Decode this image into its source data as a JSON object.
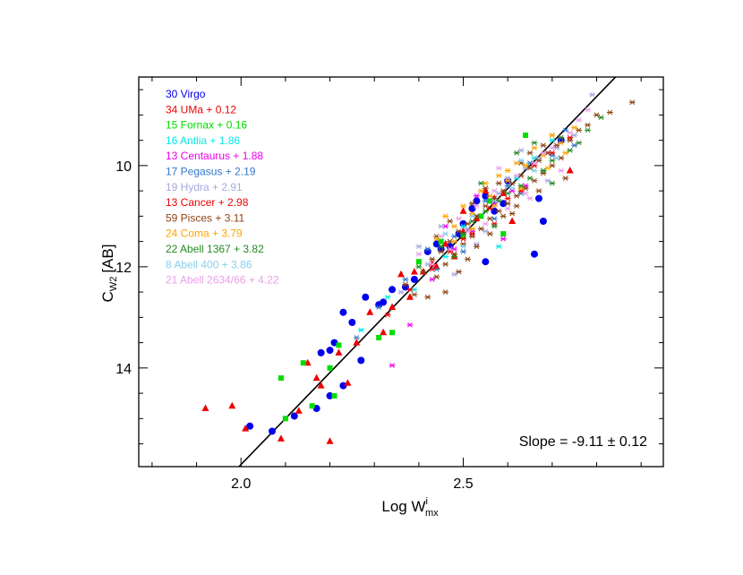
{
  "chart_data": {
    "type": "scatter",
    "xlabel_base": "Log W",
    "xlabel_sup": "i",
    "xlabel_sub": "mx",
    "ylabel_base": "C",
    "ylabel_sub": "W2",
    "ylabel_unit": "[AB]",
    "xlim": [
      1.77,
      2.95
    ],
    "ylim": [
      15.95,
      8.25
    ],
    "y_inverted": true,
    "x_major_ticks": [
      2.0,
      2.5
    ],
    "x_tick_labels": [
      "2.0",
      "2.5"
    ],
    "x_minor_step": 0.1,
    "y_major_ticks": [
      10,
      12,
      14
    ],
    "y_tick_labels": [
      "10",
      "12",
      "14"
    ],
    "y_minor_step": 0.5,
    "grid": false,
    "legend_position": "top-left",
    "annotation": "Slope = -9.11 ± 0.12",
    "fit_line": {
      "slope": -9.11,
      "x": [
        1.99,
        2.87
      ],
      "y": [
        16.0,
        8.0
      ]
    },
    "series": [
      {
        "name": "30 Virgo",
        "color": "#0000ee",
        "marker": "circle",
        "points": [
          [
            2.02,
            15.15
          ],
          [
            2.07,
            15.25
          ],
          [
            2.12,
            14.95
          ],
          [
            2.17,
            14.8
          ],
          [
            2.2,
            14.55
          ],
          [
            2.23,
            14.35
          ],
          [
            2.18,
            13.7
          ],
          [
            2.2,
            13.65
          ],
          [
            2.21,
            13.5
          ],
          [
            2.23,
            12.9
          ],
          [
            2.25,
            13.1
          ],
          [
            2.27,
            13.85
          ],
          [
            2.28,
            12.6
          ],
          [
            2.31,
            12.75
          ],
          [
            2.32,
            12.7
          ],
          [
            2.34,
            12.45
          ],
          [
            2.37,
            12.4
          ],
          [
            2.39,
            12.25
          ],
          [
            2.42,
            11.7
          ],
          [
            2.44,
            11.55
          ],
          [
            2.45,
            11.65
          ],
          [
            2.47,
            11.6
          ],
          [
            2.49,
            11.35
          ],
          [
            2.5,
            11.15
          ],
          [
            2.52,
            10.85
          ],
          [
            2.53,
            10.7
          ],
          [
            2.55,
            10.6
          ],
          [
            2.57,
            10.9
          ],
          [
            2.59,
            10.75
          ],
          [
            2.6,
            10.3
          ],
          [
            2.67,
            10.65
          ],
          [
            2.68,
            11.1
          ],
          [
            2.72,
            9.5
          ],
          [
            2.66,
            11.75
          ],
          [
            2.55,
            11.9
          ]
        ]
      },
      {
        "name": "34 UMa + 0.12",
        "color": "#ee0000",
        "marker": "triangle",
        "points": [
          [
            1.92,
            14.8
          ],
          [
            1.98,
            14.75
          ],
          [
            2.01,
            15.2
          ],
          [
            2.09,
            15.4
          ],
          [
            2.13,
            14.85
          ],
          [
            2.15,
            13.9
          ],
          [
            2.18,
            14.35
          ],
          [
            2.2,
            15.45
          ],
          [
            2.22,
            13.7
          ],
          [
            2.24,
            14.3
          ],
          [
            2.26,
            13.5
          ],
          [
            2.29,
            12.9
          ],
          [
            2.32,
            13.3
          ],
          [
            2.34,
            12.8
          ],
          [
            2.36,
            12.15
          ],
          [
            2.38,
            12.6
          ],
          [
            2.41,
            12.1
          ],
          [
            2.43,
            11.95
          ],
          [
            2.46,
            11.55
          ],
          [
            2.48,
            11.8
          ],
          [
            2.5,
            11.3
          ],
          [
            2.53,
            11.05
          ],
          [
            2.55,
            10.5
          ],
          [
            2.57,
            10.65
          ],
          [
            2.59,
            10.55
          ],
          [
            2.61,
            11.1
          ],
          [
            2.74,
            10.1
          ],
          [
            2.5,
            10.9
          ],
          [
            2.44,
            12.0
          ],
          [
            2.39,
            12.1
          ],
          [
            2.17,
            14.2
          ]
        ]
      },
      {
        "name": "15 Fornax + 0.16",
        "color": "#00dd00",
        "marker": "square",
        "points": [
          [
            2.09,
            14.2
          ],
          [
            2.1,
            15.0
          ],
          [
            2.14,
            13.9
          ],
          [
            2.16,
            14.75
          ],
          [
            2.21,
            14.55
          ],
          [
            2.22,
            13.55
          ],
          [
            2.2,
            14.0
          ],
          [
            2.31,
            13.4
          ],
          [
            2.34,
            13.3
          ],
          [
            2.4,
            11.9
          ],
          [
            2.45,
            11.5
          ],
          [
            2.5,
            11.4
          ],
          [
            2.54,
            11.0
          ],
          [
            2.59,
            11.35
          ],
          [
            2.64,
            9.4
          ],
          [
            2.56,
            10.7
          ]
        ]
      },
      {
        "name": "16 Antlia + 1.86",
        "color": "#00e8e8",
        "marker": "star",
        "points": [
          [
            2.27,
            13.25
          ],
          [
            2.33,
            12.6
          ],
          [
            2.39,
            12.45
          ],
          [
            2.46,
            11.8
          ],
          [
            2.5,
            11.2
          ],
          [
            2.53,
            11.0
          ],
          [
            2.58,
            11.6
          ],
          [
            2.62,
            10.25
          ],
          [
            2.66,
            9.85
          ],
          [
            2.7,
            9.5
          ]
        ]
      },
      {
        "name": "13 Centaurus + 1.88",
        "color": "#ee00ee",
        "marker": "star",
        "points": [
          [
            2.34,
            13.95
          ],
          [
            2.38,
            13.15
          ],
          [
            2.43,
            12.25
          ],
          [
            2.48,
            11.65
          ],
          [
            2.52,
            11.3
          ],
          [
            2.57,
            10.75
          ],
          [
            2.61,
            10.5
          ],
          [
            2.64,
            10.4
          ],
          [
            2.69,
            9.75
          ],
          [
            2.72,
            9.45
          ],
          [
            2.53,
            10.6
          ],
          [
            2.46,
            11.2
          ],
          [
            2.59,
            11.45
          ]
        ]
      },
      {
        "name": "17 Pegasus + 2.19",
        "color": "#3078c8",
        "marker": "star",
        "points": [
          [
            2.26,
            13.4
          ],
          [
            2.31,
            12.8
          ],
          [
            2.37,
            12.25
          ],
          [
            2.42,
            11.65
          ],
          [
            2.48,
            11.4
          ],
          [
            2.55,
            10.7
          ],
          [
            2.6,
            10.4
          ],
          [
            2.65,
            9.95
          ],
          [
            2.7,
            9.8
          ],
          [
            2.75,
            9.6
          ],
          [
            2.44,
            12.05
          ],
          [
            2.5,
            11.7
          ],
          [
            2.57,
            11.05
          ],
          [
            2.63,
            10.55
          ],
          [
            2.68,
            10.1
          ],
          [
            2.73,
            9.3
          ],
          [
            2.53,
            11.0
          ]
        ]
      },
      {
        "name": "19 Hydra + 2.91",
        "color": "#a8a8e0",
        "marker": "star",
        "points": [
          [
            2.36,
            12.5
          ],
          [
            2.42,
            11.95
          ],
          [
            2.47,
            11.5
          ],
          [
            2.51,
            11.25
          ],
          [
            2.56,
            10.85
          ],
          [
            2.6,
            10.25
          ],
          [
            2.64,
            10.05
          ],
          [
            2.67,
            9.85
          ],
          [
            2.71,
            9.65
          ],
          [
            2.75,
            9.4
          ],
          [
            2.79,
            8.6
          ],
          [
            2.58,
            10.55
          ],
          [
            2.48,
            12.15
          ],
          [
            2.53,
            11.55
          ],
          [
            2.45,
            11.2
          ],
          [
            2.63,
            9.7
          ],
          [
            2.69,
            10.3
          ],
          [
            2.4,
            11.6
          ],
          [
            2.55,
            11.3
          ]
        ]
      },
      {
        "name": "13 Cancer + 2.98",
        "color": "#ee0000",
        "marker": "star",
        "points": [
          [
            2.33,
            12.95
          ],
          [
            2.38,
            12.45
          ],
          [
            2.43,
            12.05
          ],
          [
            2.47,
            11.7
          ],
          [
            2.52,
            11.35
          ],
          [
            2.56,
            10.85
          ],
          [
            2.6,
            10.65
          ],
          [
            2.66,
            10.0
          ],
          [
            2.7,
            9.75
          ],
          [
            2.74,
            9.45
          ],
          [
            2.63,
            10.5
          ],
          [
            2.5,
            11.45
          ],
          [
            2.57,
            11.15
          ]
        ]
      },
      {
        "name": "59 Pisces + 3.11",
        "color": "#8b4513",
        "marker": "star",
        "points": [
          [
            2.37,
            12.35
          ],
          [
            2.39,
            12.55
          ],
          [
            2.41,
            12.1
          ],
          [
            2.43,
            11.85
          ],
          [
            2.44,
            12.2
          ],
          [
            2.45,
            11.7
          ],
          [
            2.46,
            11.95
          ],
          [
            2.47,
            11.5
          ],
          [
            2.48,
            11.75
          ],
          [
            2.49,
            11.3
          ],
          [
            2.5,
            11.55
          ],
          [
            2.51,
            11.15
          ],
          [
            2.52,
            11.4
          ],
          [
            2.53,
            11.0
          ],
          [
            2.54,
            11.25
          ],
          [
            2.55,
            10.8
          ],
          [
            2.56,
            11.05
          ],
          [
            2.57,
            10.65
          ],
          [
            2.58,
            10.9
          ],
          [
            2.59,
            10.5
          ],
          [
            2.6,
            10.75
          ],
          [
            2.61,
            10.35
          ],
          [
            2.62,
            10.6
          ],
          [
            2.63,
            10.2
          ],
          [
            2.64,
            10.45
          ],
          [
            2.65,
            10.05
          ],
          [
            2.66,
            10.3
          ],
          [
            2.67,
            9.9
          ],
          [
            2.68,
            10.15
          ],
          [
            2.69,
            9.75
          ],
          [
            2.7,
            10.0
          ],
          [
            2.71,
            9.6
          ],
          [
            2.72,
            9.85
          ],
          [
            2.74,
            9.5
          ],
          [
            2.76,
            9.3
          ],
          [
            2.78,
            9.2
          ],
          [
            2.8,
            9.0
          ],
          [
            2.83,
            8.95
          ],
          [
            2.88,
            8.75
          ],
          [
            2.46,
            12.5
          ],
          [
            2.53,
            11.6
          ],
          [
            2.59,
            11.0
          ],
          [
            2.44,
            11.4
          ],
          [
            2.52,
            10.75
          ],
          [
            2.58,
            10.35
          ],
          [
            2.65,
            9.75
          ],
          [
            2.61,
            10.95
          ],
          [
            2.67,
            10.5
          ],
          [
            2.49,
            12.1
          ],
          [
            2.56,
            11.35
          ],
          [
            2.63,
            9.95
          ],
          [
            2.7,
            9.4
          ],
          [
            2.47,
            11.1
          ],
          [
            2.55,
            10.45
          ],
          [
            2.62,
            10.8
          ],
          [
            2.68,
            9.6
          ],
          [
            2.73,
            10.25
          ],
          [
            2.42,
            12.6
          ],
          [
            2.51,
            11.85
          ]
        ]
      },
      {
        "name": "24 Coma + 3.79",
        "color": "#ffa500",
        "marker": "star",
        "points": [
          [
            2.44,
            11.45
          ],
          [
            2.48,
            11.2
          ],
          [
            2.52,
            10.95
          ],
          [
            2.56,
            10.6
          ],
          [
            2.6,
            10.3
          ],
          [
            2.64,
            10.0
          ],
          [
            2.68,
            9.8
          ],
          [
            2.72,
            9.55
          ],
          [
            2.75,
            9.25
          ],
          [
            2.5,
            10.8
          ],
          [
            2.58,
            10.2
          ],
          [
            2.66,
            9.65
          ],
          [
            2.46,
            11.0
          ],
          [
            2.54,
            10.5
          ],
          [
            2.62,
            9.95
          ],
          [
            2.7,
            9.4
          ],
          [
            2.57,
            10.8
          ],
          [
            2.63,
            10.45
          ],
          [
            2.69,
            10.05
          ],
          [
            2.52,
            11.25
          ],
          [
            2.6,
            10.1
          ],
          [
            2.73,
            9.75
          ],
          [
            2.48,
            11.5
          ],
          [
            2.55,
            10.35
          ]
        ]
      },
      {
        "name": "22 Abell 1367 + 3.82",
        "color": "#228b22",
        "marker": "star",
        "points": [
          [
            2.4,
            12.0
          ],
          [
            2.45,
            11.6
          ],
          [
            2.5,
            11.35
          ],
          [
            2.55,
            10.9
          ],
          [
            2.6,
            10.55
          ],
          [
            2.65,
            10.25
          ],
          [
            2.7,
            9.9
          ],
          [
            2.74,
            9.7
          ],
          [
            2.78,
            9.3
          ],
          [
            2.81,
            9.05
          ],
          [
            2.52,
            11.1
          ],
          [
            2.58,
            10.7
          ],
          [
            2.63,
            10.4
          ],
          [
            2.68,
            10.1
          ],
          [
            2.72,
            9.45
          ],
          [
            2.76,
            9.55
          ],
          [
            2.48,
            11.8
          ],
          [
            2.62,
            9.75
          ],
          [
            2.66,
            9.55
          ],
          [
            2.54,
            10.35
          ],
          [
            2.57,
            11.2
          ],
          [
            2.7,
            10.35
          ]
        ]
      },
      {
        "name": "8 Abell 400 + 3.86",
        "color": "#87ceeb",
        "marker": "star",
        "points": [
          [
            2.46,
            11.35
          ],
          [
            2.52,
            11.0
          ],
          [
            2.57,
            10.7
          ],
          [
            2.61,
            10.45
          ],
          [
            2.66,
            10.1
          ],
          [
            2.71,
            9.85
          ],
          [
            2.5,
            11.6
          ],
          [
            2.63,
            9.9
          ]
        ]
      },
      {
        "name": "21 Abell 2634/66 + 4.22",
        "color": "#e8a0e8",
        "marker": "star",
        "points": [
          [
            2.4,
            11.75
          ],
          [
            2.45,
            11.4
          ],
          [
            2.49,
            11.05
          ],
          [
            2.53,
            10.8
          ],
          [
            2.57,
            10.5
          ],
          [
            2.62,
            10.2
          ],
          [
            2.66,
            9.95
          ],
          [
            2.7,
            9.65
          ],
          [
            2.74,
            9.35
          ],
          [
            2.78,
            8.9
          ],
          [
            2.51,
            11.3
          ],
          [
            2.55,
            11.15
          ],
          [
            2.6,
            10.85
          ],
          [
            2.64,
            10.55
          ],
          [
            2.68,
            9.75
          ],
          [
            2.72,
            10.1
          ],
          [
            2.47,
            11.65
          ],
          [
            2.58,
            10.05
          ],
          [
            2.76,
            9.1
          ],
          [
            2.43,
            11.95
          ],
          [
            2.65,
            10.65
          ]
        ]
      }
    ]
  }
}
